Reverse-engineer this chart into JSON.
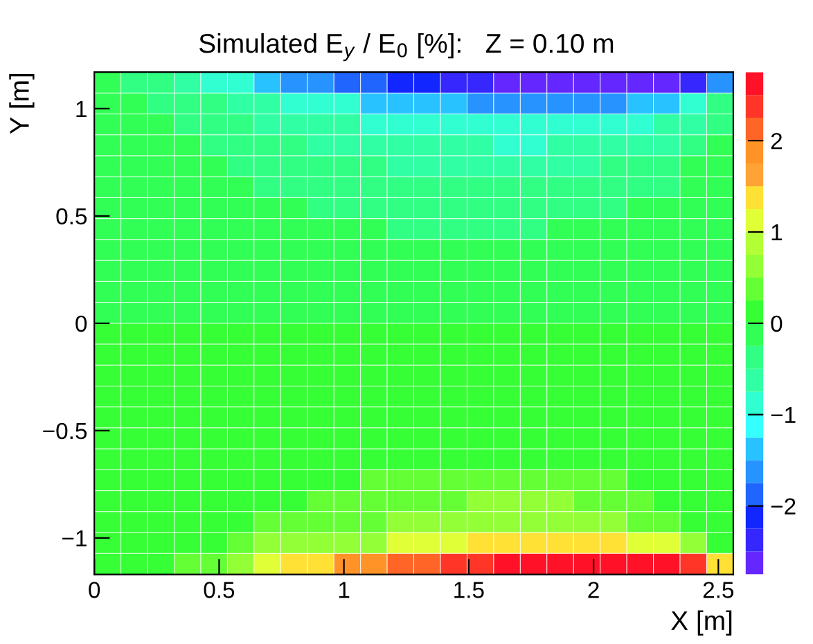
{
  "chart_data": {
    "type": "heatmap",
    "title": "Simulated E$_{y}$ / E$_{0}$ [%]:   Z = 0.10 m",
    "xlabel": "X [m]",
    "ylabel": "Y [m]",
    "xlim": [
      0,
      2.56
    ],
    "ylim": [
      -1.17,
      1.17
    ],
    "xticks": [
      0,
      0.5,
      1,
      1.5,
      2,
      2.5
    ],
    "yticks": [
      {
        "value": -1,
        "label": "−1"
      },
      {
        "value": -0.5,
        "label": "−0.5"
      },
      0,
      0.5,
      1
    ],
    "clim": [
      -2.75,
      2.75
    ],
    "cticks": [
      {
        "value": -2,
        "label": "−2"
      },
      {
        "value": -1,
        "label": "−1"
      },
      0,
      1,
      2
    ],
    "grid": false,
    "cells": [
      [
        -0.1,
        -0.35,
        -0.35,
        -0.6,
        -0.9,
        -0.9,
        -1.4,
        -1.6,
        -1.6,
        -1.9,
        -1.9,
        -2.1,
        -2.1,
        -2.4,
        -2.4,
        -2.6,
        -2.6,
        -2.6,
        -2.6,
        -2.6,
        -2.6,
        -2.6,
        -2.4,
        -1.6
      ],
      [
        -0.1,
        -0.1,
        -0.35,
        -0.35,
        -0.35,
        -0.6,
        -0.6,
        -0.9,
        -0.9,
        -0.9,
        -1.4,
        -1.4,
        -1.4,
        -1.4,
        -1.6,
        -1.6,
        -1.6,
        -1.6,
        -1.6,
        -1.6,
        -1.4,
        -1.4,
        -0.9,
        -0.35
      ],
      [
        -0.1,
        -0.1,
        -0.1,
        -0.35,
        -0.35,
        -0.35,
        -0.6,
        -0.6,
        -0.6,
        -0.6,
        -0.9,
        -0.9,
        -0.9,
        -0.9,
        -0.9,
        -0.9,
        -0.9,
        -0.9,
        -0.9,
        -0.9,
        -0.9,
        -0.6,
        -0.6,
        -0.35
      ],
      [
        -0.1,
        -0.1,
        -0.1,
        -0.1,
        -0.35,
        -0.35,
        -0.35,
        -0.35,
        -0.6,
        -0.6,
        -0.6,
        -0.6,
        -0.6,
        -0.6,
        -0.6,
        -0.9,
        -0.9,
        -0.6,
        -0.6,
        -0.6,
        -0.6,
        -0.6,
        -0.35,
        -0.1
      ],
      [
        -0.1,
        -0.1,
        -0.1,
        -0.1,
        -0.1,
        -0.35,
        -0.35,
        -0.35,
        -0.35,
        -0.35,
        -0.35,
        -0.6,
        -0.6,
        -0.6,
        -0.6,
        -0.6,
        -0.6,
        -0.6,
        -0.6,
        -0.35,
        -0.35,
        -0.35,
        -0.1,
        -0.1
      ],
      [
        -0.1,
        -0.1,
        -0.1,
        -0.1,
        -0.1,
        -0.1,
        -0.35,
        -0.35,
        -0.35,
        -0.35,
        -0.35,
        -0.35,
        -0.35,
        -0.35,
        -0.35,
        -0.35,
        -0.35,
        -0.35,
        -0.35,
        -0.35,
        -0.35,
        -0.35,
        -0.1,
        -0.1
      ],
      [
        -0.1,
        -0.1,
        -0.1,
        -0.1,
        -0.1,
        -0.1,
        -0.1,
        -0.1,
        -0.35,
        -0.35,
        -0.35,
        -0.35,
        -0.35,
        -0.35,
        -0.35,
        -0.35,
        -0.35,
        -0.35,
        -0.35,
        -0.35,
        -0.1,
        -0.1,
        -0.1,
        -0.1
      ],
      [
        -0.1,
        -0.1,
        -0.1,
        -0.1,
        -0.1,
        -0.1,
        -0.1,
        -0.1,
        -0.1,
        -0.1,
        -0.1,
        -0.35,
        -0.35,
        -0.35,
        -0.35,
        -0.35,
        -0.35,
        -0.1,
        -0.1,
        -0.1,
        -0.1,
        -0.1,
        -0.1,
        -0.1
      ],
      [
        -0.1,
        -0.1,
        -0.1,
        -0.1,
        -0.1,
        -0.1,
        -0.1,
        -0.1,
        -0.1,
        -0.1,
        -0.1,
        -0.1,
        -0.1,
        -0.1,
        -0.1,
        -0.1,
        -0.1,
        -0.1,
        -0.1,
        -0.1,
        -0.1,
        -0.1,
        -0.1,
        -0.1
      ],
      [
        -0.1,
        -0.1,
        -0.1,
        -0.1,
        -0.1,
        -0.1,
        -0.1,
        -0.1,
        -0.1,
        -0.1,
        -0.1,
        -0.1,
        -0.1,
        -0.1,
        -0.1,
        -0.1,
        -0.1,
        -0.1,
        -0.1,
        -0.1,
        -0.1,
        -0.1,
        -0.1,
        -0.1
      ],
      [
        -0.1,
        -0.1,
        -0.1,
        -0.1,
        -0.1,
        -0.1,
        -0.1,
        -0.1,
        -0.1,
        -0.1,
        -0.1,
        -0.1,
        -0.1,
        -0.1,
        -0.1,
        -0.1,
        -0.1,
        -0.1,
        -0.1,
        -0.1,
        -0.1,
        -0.1,
        -0.1,
        -0.1
      ],
      [
        -0.1,
        -0.1,
        -0.1,
        -0.1,
        -0.1,
        -0.1,
        -0.1,
        -0.1,
        -0.1,
        -0.1,
        -0.1,
        -0.1,
        -0.1,
        -0.1,
        -0.1,
        -0.1,
        -0.1,
        -0.1,
        -0.1,
        -0.1,
        -0.1,
        -0.1,
        -0.1,
        -0.1
      ],
      [
        0.1,
        0.1,
        0.1,
        0.1,
        0.1,
        0.1,
        0.1,
        0.1,
        0.1,
        0.1,
        0.1,
        0.1,
        0.1,
        0.1,
        0.1,
        0.1,
        0.1,
        0.1,
        0.1,
        0.1,
        0.1,
        0.1,
        0.1,
        0.1
      ],
      [
        0.1,
        0.1,
        0.1,
        0.1,
        0.1,
        0.1,
        0.1,
        0.1,
        0.1,
        0.1,
        0.1,
        0.1,
        0.1,
        0.1,
        0.1,
        0.1,
        0.1,
        0.1,
        0.1,
        0.1,
        0.1,
        0.1,
        0.1,
        0.1
      ],
      [
        0.1,
        0.1,
        0.1,
        0.1,
        0.1,
        0.1,
        0.1,
        0.1,
        0.1,
        0.1,
        0.1,
        0.1,
        0.1,
        0.1,
        0.1,
        0.1,
        0.1,
        0.1,
        0.1,
        0.1,
        0.1,
        0.1,
        0.1,
        0.1
      ],
      [
        0.1,
        0.1,
        0.1,
        0.1,
        0.1,
        0.1,
        0.1,
        0.1,
        0.1,
        0.1,
        0.1,
        0.1,
        0.1,
        0.1,
        0.1,
        0.1,
        0.1,
        0.1,
        0.1,
        0.1,
        0.1,
        0.1,
        0.1,
        0.1
      ],
      [
        0.1,
        0.1,
        0.1,
        0.1,
        0.1,
        0.1,
        0.1,
        0.1,
        0.1,
        0.1,
        0.1,
        0.1,
        0.1,
        0.1,
        0.1,
        0.1,
        0.1,
        0.1,
        0.1,
        0.1,
        0.1,
        0.1,
        0.1,
        0.1
      ],
      [
        0.1,
        0.1,
        0.1,
        0.1,
        0.1,
        0.1,
        0.1,
        0.1,
        0.1,
        0.1,
        0.1,
        0.1,
        0.1,
        0.1,
        0.1,
        0.1,
        0.1,
        0.1,
        0.1,
        0.1,
        0.1,
        0.1,
        0.1,
        0.1
      ],
      [
        0.1,
        0.1,
        0.1,
        0.1,
        0.1,
        0.1,
        0.1,
        0.1,
        0.1,
        0.1,
        0.1,
        0.1,
        0.1,
        0.1,
        0.1,
        0.1,
        0.1,
        0.1,
        0.1,
        0.1,
        0.1,
        0.1,
        0.1,
        0.1
      ],
      [
        0.1,
        0.1,
        0.1,
        0.1,
        0.1,
        0.1,
        0.1,
        0.1,
        0.1,
        0.1,
        0.4,
        0.4,
        0.4,
        0.4,
        0.4,
        0.4,
        0.4,
        0.4,
        0.4,
        0.4,
        0.1,
        0.1,
        0.1,
        0.1
      ],
      [
        0.1,
        0.1,
        0.1,
        0.1,
        0.1,
        0.1,
        0.1,
        0.1,
        0.4,
        0.4,
        0.4,
        0.4,
        0.4,
        0.4,
        0.6,
        0.6,
        0.6,
        0.6,
        0.4,
        0.4,
        0.4,
        0.1,
        0.1,
        0.1
      ],
      [
        0.1,
        0.1,
        0.1,
        0.1,
        0.1,
        0.1,
        0.4,
        0.4,
        0.4,
        0.4,
        0.4,
        0.6,
        0.6,
        0.6,
        0.6,
        0.6,
        0.6,
        0.6,
        0.6,
        0.6,
        0.4,
        0.4,
        0.1,
        0.1
      ],
      [
        0.1,
        0.1,
        0.1,
        0.1,
        0.1,
        0.4,
        0.6,
        0.6,
        0.6,
        0.6,
        0.6,
        1.1,
        1.1,
        1.1,
        1.4,
        1.4,
        1.4,
        1.4,
        1.4,
        1.4,
        1.1,
        1.1,
        0.6,
        0.1
      ],
      [
        0.1,
        0.1,
        0.1,
        0.4,
        0.4,
        0.6,
        1.1,
        1.4,
        1.4,
        1.9,
        1.9,
        2.1,
        2.1,
        2.4,
        2.4,
        2.6,
        2.6,
        2.6,
        2.6,
        2.6,
        2.6,
        2.6,
        2.4,
        1.4
      ]
    ]
  }
}
